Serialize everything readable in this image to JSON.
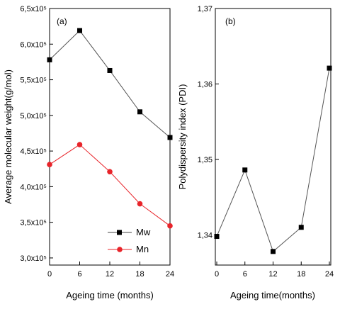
{
  "chart_data": [
    {
      "type": "line",
      "panel_label": "(a)",
      "x": [
        0,
        6,
        12,
        18,
        24
      ],
      "xticks": [
        "0",
        "6",
        "12",
        "18",
        "24"
      ],
      "xlim": [
        0,
        24
      ],
      "ylim": [
        290000,
        650000
      ],
      "yticks": [
        "3,0x10⁵",
        "3,5x10⁵",
        "4,0x10⁵",
        "4,5x10⁵",
        "5,0x10⁵",
        "5,5x10⁵",
        "6,0x10⁵",
        "6,5x10⁵"
      ],
      "ytick_values": [
        300000,
        350000,
        400000,
        450000,
        500000,
        550000,
        600000,
        650000
      ],
      "xlabel": "Ageing time (months)",
      "ylabel": "Average molecular weight(g/mol)",
      "grid": false,
      "legend_position": "bottom-right",
      "series": [
        {
          "name": "Mw",
          "values": [
            578000,
            619000,
            563000,
            505000,
            469000
          ],
          "color": "#000000",
          "marker": "square"
        },
        {
          "name": "Mn",
          "values": [
            431000,
            459000,
            421000,
            376000,
            345000
          ],
          "color": "#e8242a",
          "marker": "circle"
        }
      ]
    },
    {
      "type": "line",
      "panel_label": "(b)",
      "x": [
        0,
        6,
        12,
        18,
        24
      ],
      "xticks": [
        "0",
        "6",
        "12",
        "18",
        "24"
      ],
      "xlim": [
        0,
        24
      ],
      "ylim": [
        1.336,
        1.37
      ],
      "yticks": [
        "1,34",
        "1,35",
        "1,36",
        "1,37"
      ],
      "ytick_values": [
        1.34,
        1.35,
        1.36,
        1.37
      ],
      "xlabel": "Ageing time(months)",
      "ylabel": "Polydispersity index (PDI)",
      "grid": false,
      "series": [
        {
          "values": [
            1.3398,
            1.3486,
            1.3378,
            1.341,
            1.3621
          ],
          "color": "#000000",
          "marker": "square"
        }
      ]
    }
  ]
}
